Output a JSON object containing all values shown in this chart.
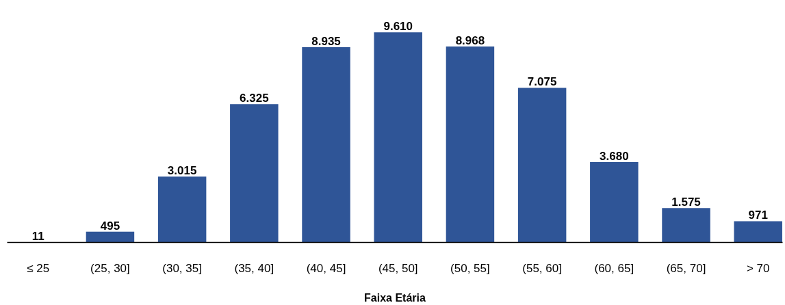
{
  "chart_data": {
    "type": "bar",
    "xlabel": "Faixa Etária",
    "categories": [
      "≤ 25",
      "(25, 30]",
      "(30, 35]",
      "(35, 40]",
      "(40, 45]",
      "(45, 50]",
      "(50, 55]",
      "(55, 60]",
      "(60, 65]",
      "(65, 70]",
      "> 70"
    ],
    "values": [
      11,
      495,
      3015,
      6325,
      8935,
      9610,
      8968,
      7075,
      3680,
      1575,
      971
    ],
    "value_labels": [
      "11",
      "495",
      "3.015",
      "6.325",
      "8.935",
      "9.610",
      "8.968",
      "7.075",
      "3.680",
      "1.575",
      "971"
    ],
    "color": "#2f5597",
    "grid": false
  }
}
